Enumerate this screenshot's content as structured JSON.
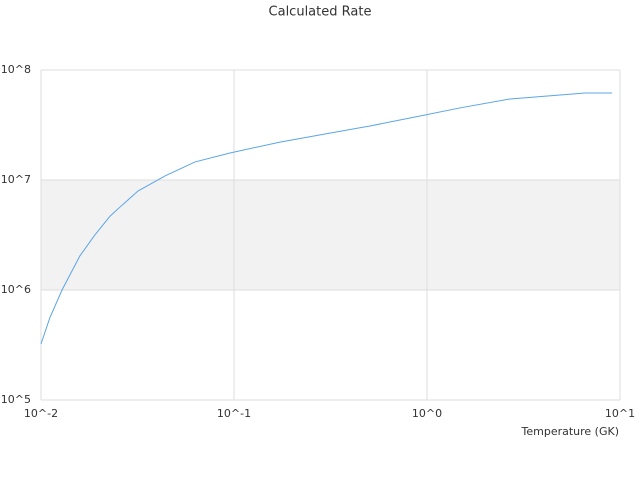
{
  "chart_data": {
    "type": "line",
    "title": "Calculated Rate",
    "x_label": "Temperature (GK)",
    "x": [
      0.01,
      0.0111,
      0.01285,
      0.0159,
      0.019,
      0.0228,
      0.0257,
      0.0318,
      0.0439,
      0.0628,
      0.0953,
      0.173,
      0.314,
      0.507,
      0.92,
      1.48,
      2.69,
      4.89,
      6.59,
      9.1
    ],
    "series": [
      {
        "color": "#5aa5e8",
        "values": [
          323000,
          556000,
          1000000,
          2040000,
          3160000,
          4700000,
          5690000,
          7940000,
          10900000,
          14600000,
          17600000,
          22100000,
          26700000,
          31000000,
          38200000,
          45200000,
          54500000,
          59300000,
          61800000,
          61800000
        ]
      }
    ],
    "xscale": "log",
    "yscale": "log",
    "xlim": [
      0.01,
      10
    ],
    "ylim": [
      100000,
      100000000
    ],
    "xticks": [
      {
        "value": 0.01,
        "label": "10^-2"
      },
      {
        "value": 0.1,
        "label": "10^-1"
      },
      {
        "value": 1,
        "label": "10^0"
      },
      {
        "value": 10,
        "label": "10^1"
      }
    ],
    "yticks": [
      {
        "value": 100000,
        "label": "10^5"
      },
      {
        "value": 1000000,
        "label": "10^6"
      },
      {
        "value": 10000000,
        "label": "10^7"
      },
      {
        "value": 100000000,
        "label": "10^8"
      }
    ],
    "grid": true,
    "banded": true
  }
}
